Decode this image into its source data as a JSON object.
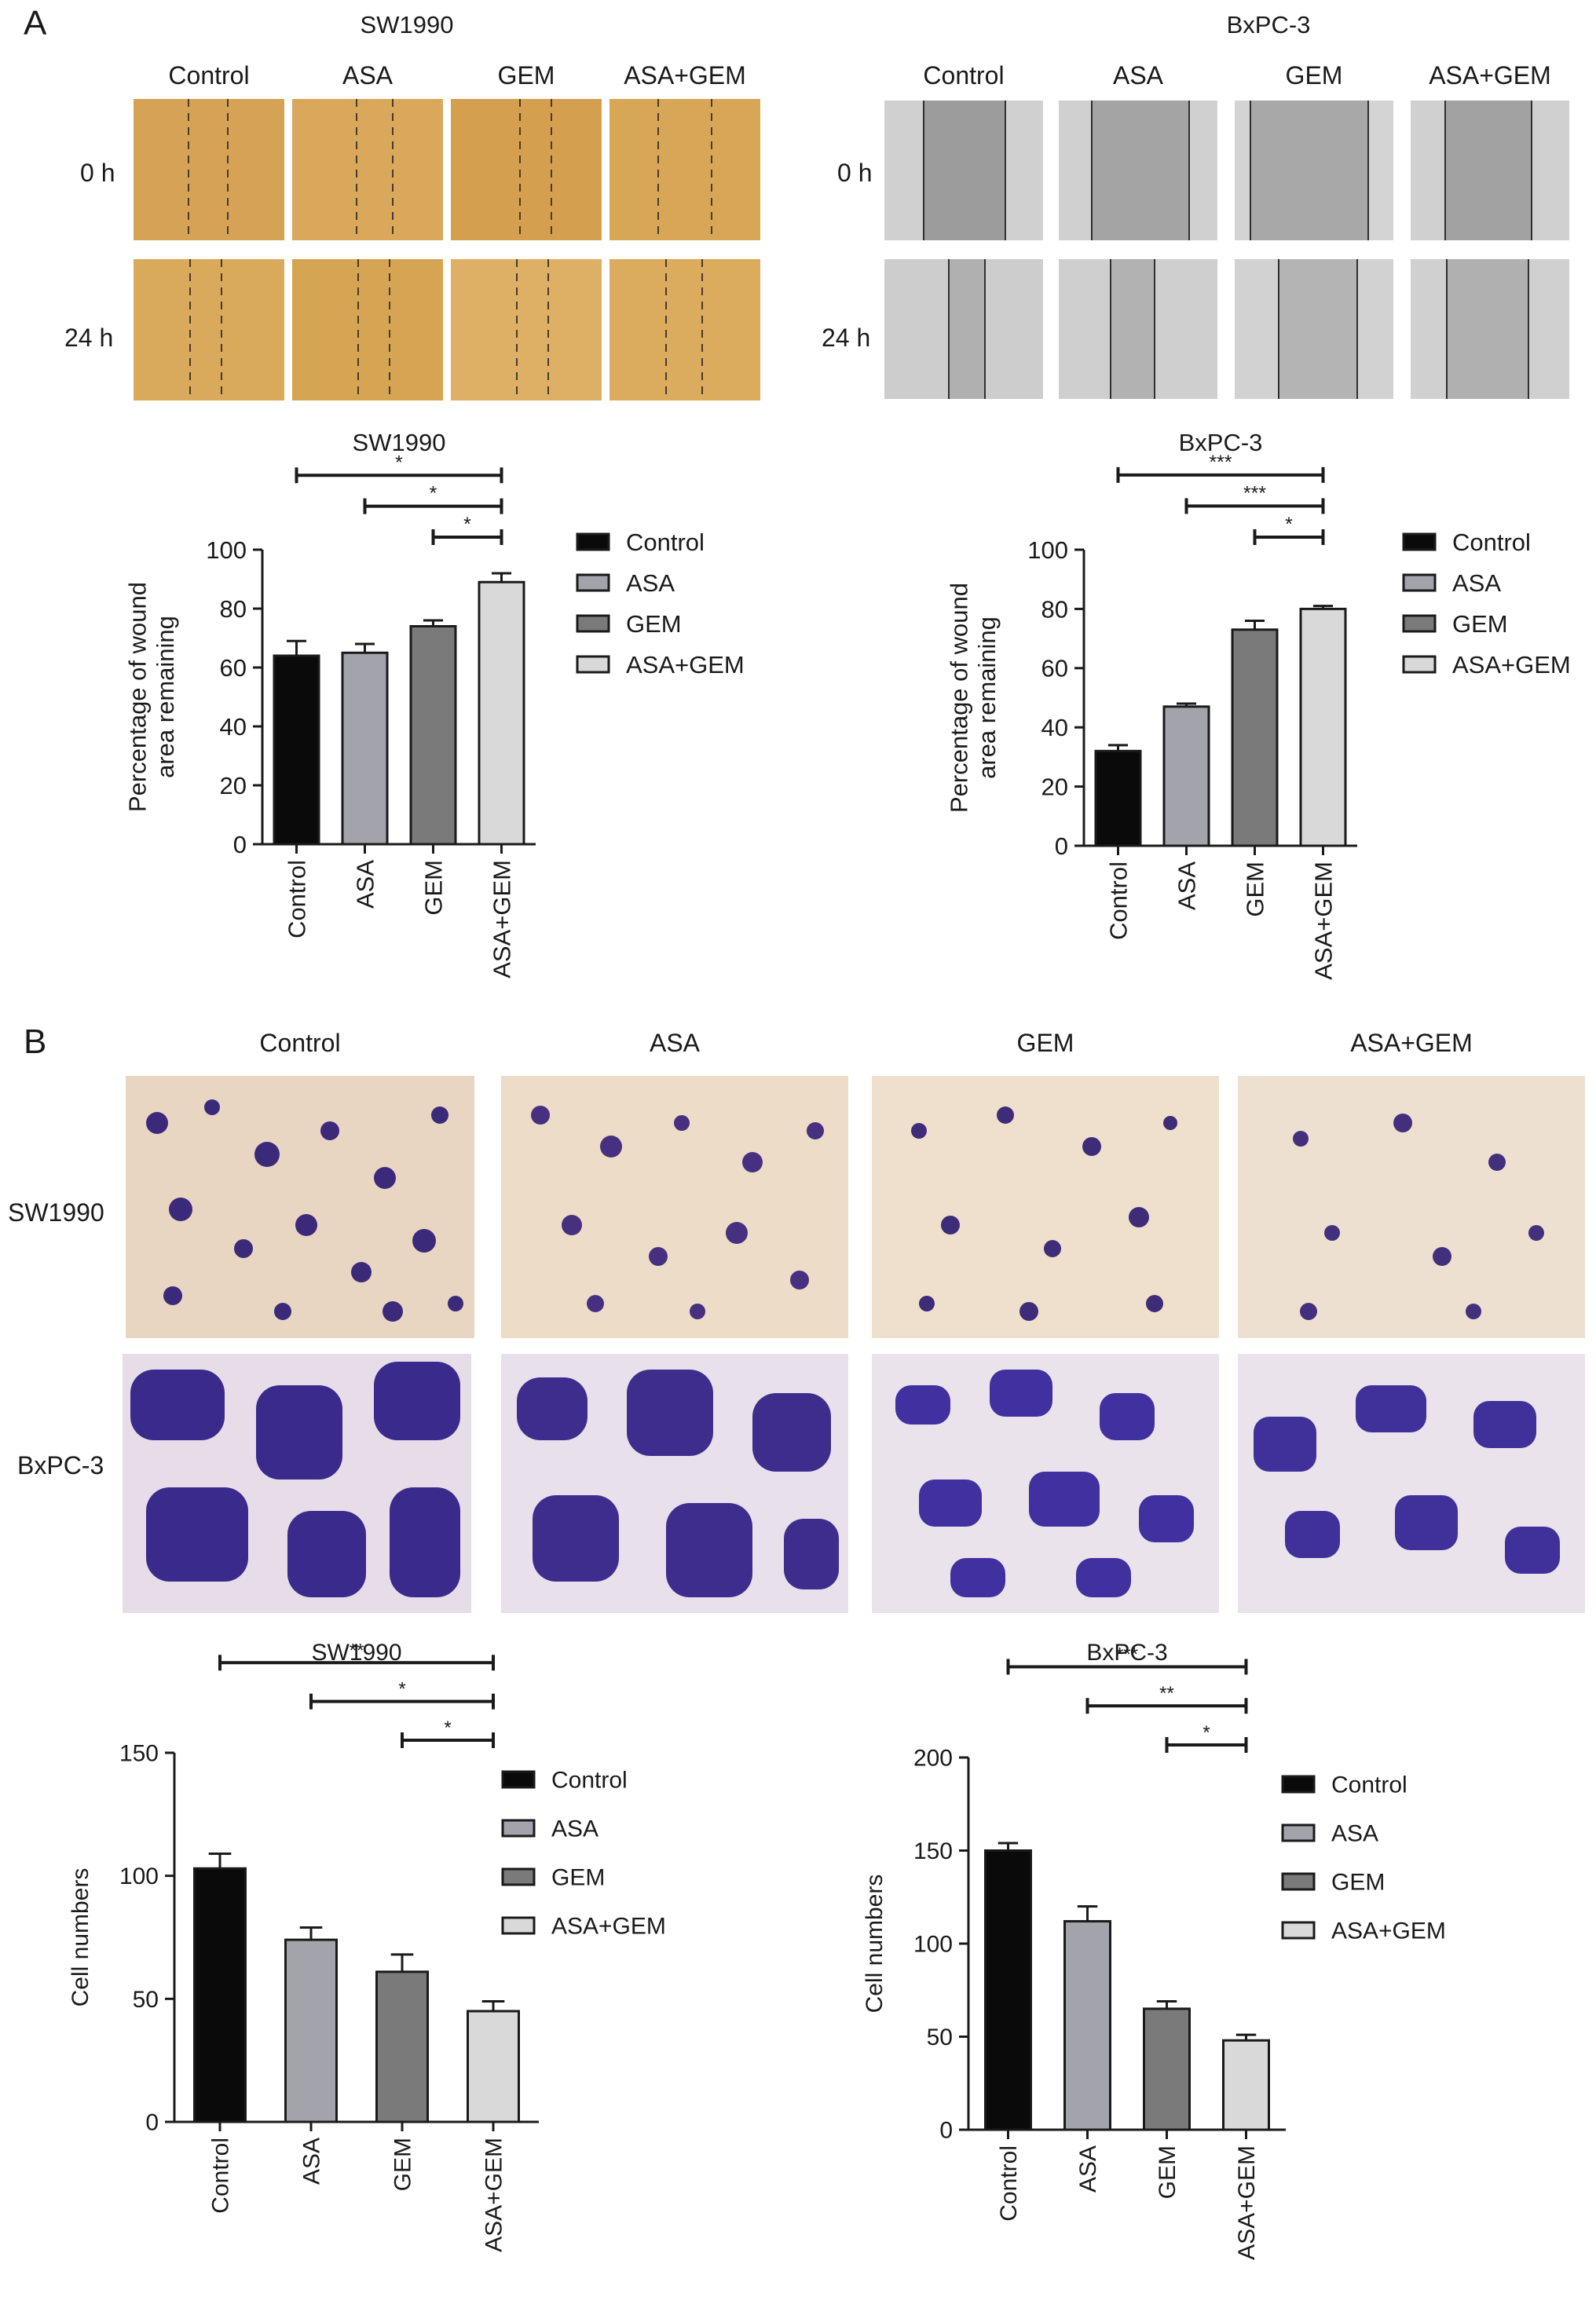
{
  "panel_a": {
    "letter": "A",
    "wound_images": [
      {
        "cell_line": "SW1990",
        "columns": [
          "Control",
          "ASA",
          "GEM",
          "ASA+GEM"
        ],
        "rows": [
          "0 h",
          "24 h"
        ],
        "style": "brightfield-orange"
      },
      {
        "cell_line": "BxPC-3",
        "columns": [
          "Control",
          "ASA",
          "GEM",
          "ASA+GEM"
        ],
        "rows": [
          "0 h",
          "24 h"
        ],
        "style": "phase-contrast-grey"
      }
    ]
  },
  "panel_b": {
    "letter": "B",
    "columns": [
      "Control",
      "ASA",
      "GEM",
      "ASA+GEM"
    ],
    "rows": [
      "SW1990",
      "BxPC-3"
    ],
    "style": "crystal-violet-stained"
  },
  "series_colors": {
    "Control": "#0a0a0a",
    "ASA": "#a3a3ab",
    "GEM": "#7a7a7a",
    "ASA+GEM": "#d9d9d9"
  },
  "chart_data": [
    {
      "type": "bar",
      "title": "SW1990",
      "ylabel": "Percentage of wound area remaining",
      "ylim": [
        0,
        100
      ],
      "yticks": [
        0,
        20,
        40,
        60,
        80,
        100
      ],
      "categories": [
        "Control",
        "ASA",
        "GEM",
        "ASA+GEM"
      ],
      "values": [
        64,
        65,
        74,
        89
      ],
      "errors": [
        5,
        3,
        2,
        3
      ],
      "legend": [
        "Control",
        "ASA",
        "GEM",
        "ASA+GEM"
      ],
      "legend_position": "right",
      "significance": [
        {
          "from": "Control",
          "to": "ASA+GEM",
          "label": "*"
        },
        {
          "from": "ASA",
          "to": "ASA+GEM",
          "label": "*"
        },
        {
          "from": "GEM",
          "to": "ASA+GEM",
          "label": "*"
        }
      ]
    },
    {
      "type": "bar",
      "title": "BxPC-3",
      "ylabel": "Percentage of wound area remaining",
      "ylim": [
        0,
        100
      ],
      "yticks": [
        0,
        20,
        40,
        60,
        80,
        100
      ],
      "categories": [
        "Control",
        "ASA",
        "GEM",
        "ASA+GEM"
      ],
      "values": [
        32,
        47,
        73,
        80
      ],
      "errors": [
        2,
        1,
        3,
        1
      ],
      "legend": [
        "Control",
        "ASA",
        "GEM",
        "ASA+GEM"
      ],
      "legend_position": "right",
      "significance": [
        {
          "from": "Control",
          "to": "ASA+GEM",
          "label": "***"
        },
        {
          "from": "ASA",
          "to": "ASA+GEM",
          "label": "***"
        },
        {
          "from": "GEM",
          "to": "ASA+GEM",
          "label": "*"
        }
      ]
    },
    {
      "type": "bar",
      "title": "SW1990",
      "ylabel": "Cell numbers",
      "ylim": [
        0,
        150
      ],
      "yticks": [
        0,
        50,
        100,
        150
      ],
      "categories": [
        "Control",
        "ASA",
        "GEM",
        "ASA+GEM"
      ],
      "values": [
        103,
        74,
        61,
        45
      ],
      "errors": [
        6,
        5,
        7,
        4
      ],
      "legend": [
        "Control",
        "ASA",
        "GEM",
        "ASA+GEM"
      ],
      "legend_position": "right",
      "significance": [
        {
          "from": "Control",
          "to": "ASA+GEM",
          "label": "**"
        },
        {
          "from": "ASA",
          "to": "ASA+GEM",
          "label": "*"
        },
        {
          "from": "GEM",
          "to": "ASA+GEM",
          "label": "*"
        }
      ]
    },
    {
      "type": "bar",
      "title": "BxPC-3",
      "ylabel": "Cell numbers",
      "ylim": [
        0,
        200
      ],
      "yticks": [
        0,
        50,
        100,
        150,
        200
      ],
      "categories": [
        "Control",
        "ASA",
        "GEM",
        "ASA+GEM"
      ],
      "values": [
        150,
        112,
        65,
        48
      ],
      "errors": [
        4,
        8,
        4,
        3
      ],
      "legend": [
        "Control",
        "ASA",
        "GEM",
        "ASA+GEM"
      ],
      "legend_position": "right",
      "significance": [
        {
          "from": "Control",
          "to": "ASA+GEM",
          "label": "***"
        },
        {
          "from": "ASA",
          "to": "ASA+GEM",
          "label": "**"
        },
        {
          "from": "GEM",
          "to": "ASA+GEM",
          "label": "*"
        }
      ]
    }
  ]
}
